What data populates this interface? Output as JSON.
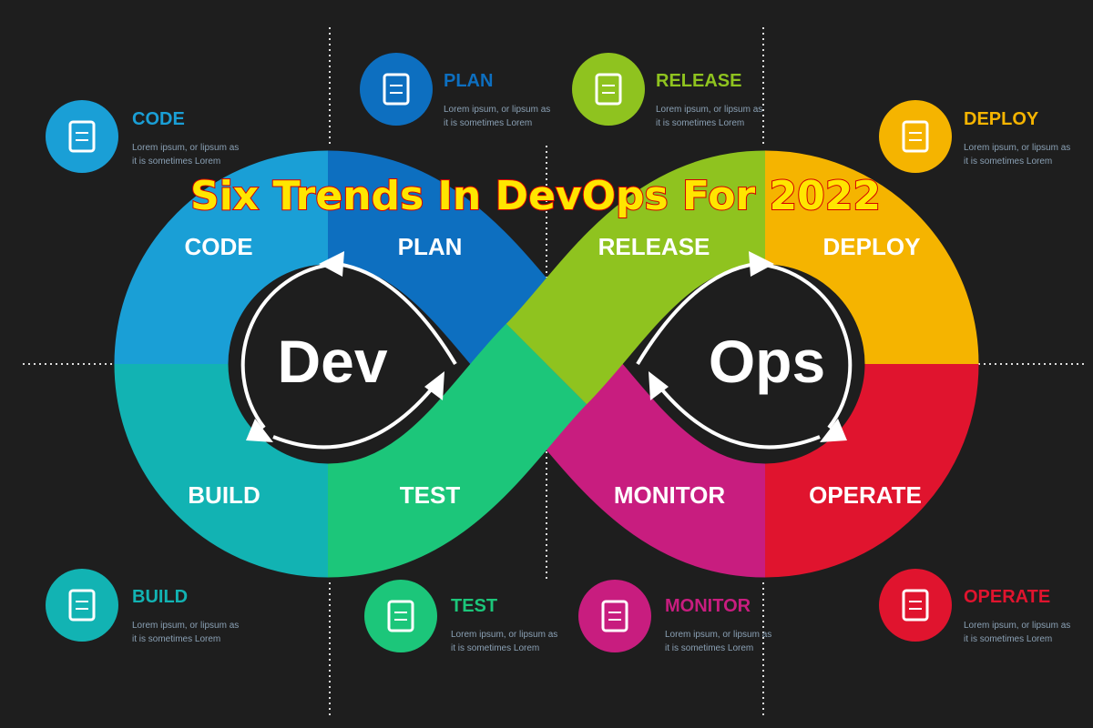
{
  "title": "Six Trends In DevOps For 2022",
  "loop": {
    "left": "Dev",
    "right": "Ops",
    "segments": [
      "CODE",
      "PLAN",
      "RELEASE",
      "DEPLOY",
      "BUILD",
      "TEST",
      "MONITOR",
      "OPERATE"
    ]
  },
  "cards": [
    {
      "title": "CODE",
      "lines": [
        "Lorem ipsum, or lipsum as",
        "it is sometimes Lorem"
      ]
    },
    {
      "title": "PLAN",
      "lines": [
        "Lorem ipsum, or lipsum as",
        "it is sometimes Lorem"
      ]
    },
    {
      "title": "RELEASE",
      "lines": [
        "Lorem ipsum, or lipsum as",
        "it is sometimes Lorem"
      ]
    },
    {
      "title": "DEPLOY",
      "lines": [
        "Lorem ipsum, or lipsum as",
        "it is sometimes Lorem"
      ]
    },
    {
      "title": "BUILD",
      "lines": [
        "Lorem ipsum, or lipsum as",
        "it is sometimes Lorem"
      ]
    },
    {
      "title": "TEST",
      "lines": [
        "Lorem ipsum, or lipsum as",
        "it is sometimes Lorem"
      ]
    },
    {
      "title": "MONITOR",
      "lines": [
        "Lorem ipsum, or lipsum as",
        "it is sometimes Lorem"
      ]
    },
    {
      "title": "OPERATE",
      "lines": [
        "Lorem ipsum, or lipsum as",
        "it is sometimes Lorem"
      ]
    }
  ]
}
